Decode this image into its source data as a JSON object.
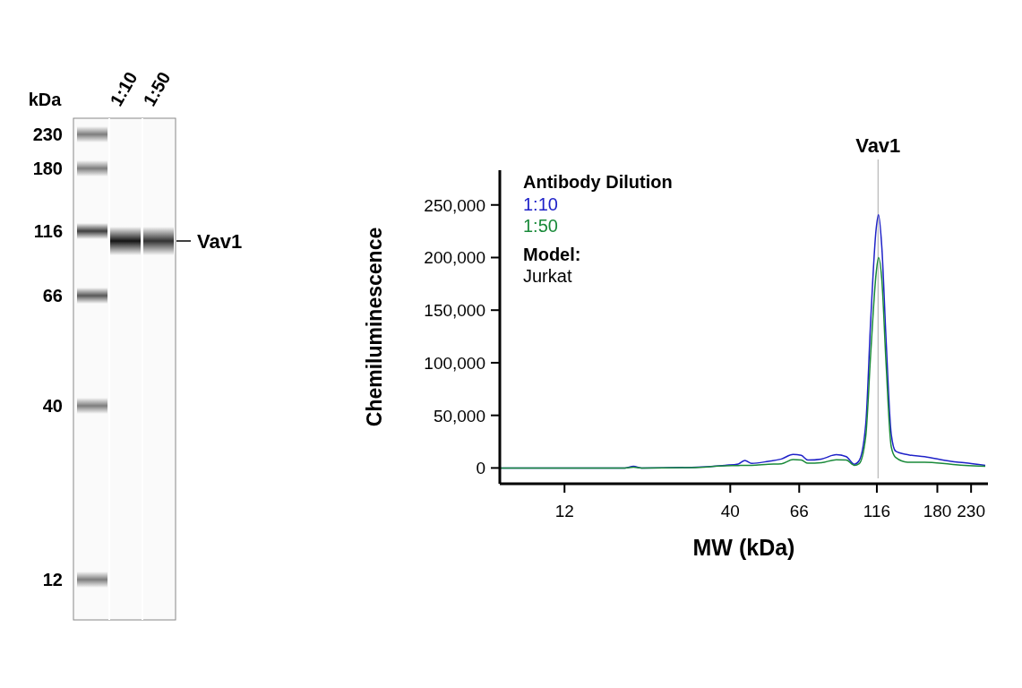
{
  "chart_data": [
    {
      "type": "other",
      "ylabel": "kDa",
      "categories": [
        "1:10",
        "1:50"
      ],
      "annotations": [
        "230",
        "180",
        "116",
        "66",
        "40",
        "12",
        "Vav1"
      ]
    },
    {
      "type": "line",
      "xlabel": "MW (kDa)",
      "ylabel": "Chemiluminescence",
      "legend_title": "Antibody Dilution",
      "legend": "top left",
      "log": "x",
      "xlim": [
        7.5,
        260
      ],
      "xticks": [
        12,
        40,
        66,
        116,
        180,
        230
      ],
      "ylim": [
        -15000,
        283000
      ],
      "yticks": [
        0,
        {
          "value": 50000,
          "label": "50,000"
        },
        {
          "value": 100000,
          "label": "100,000"
        },
        {
          "value": 150000,
          "label": "150,000"
        },
        {
          "value": 200000,
          "label": "200,000"
        },
        {
          "value": 250000,
          "label": "250,000"
        }
      ],
      "ref_lines": [
        {
          "axis": "x",
          "value": 117,
          "label": "Vav1",
          "color": "#aaaaaa"
        }
      ],
      "annotations": [
        "Model:",
        "Jurkat"
      ],
      "series": [
        {
          "name": "1:10",
          "color": "#1f22c8",
          "x": [
            7.5,
            18.6,
            19.8,
            21,
            30.2,
            38.5,
            42.4,
            44.5,
            46.7,
            52.7,
            58,
            63.1,
            67,
            70.3,
            77.5,
            86.4,
            92.9,
            98.6,
            102,
            107,
            111,
            115.4,
            117.4,
            120.2,
            124,
            128.8,
            133,
            145,
            164,
            199,
            219,
            255
          ],
          "values": [
            0,
            0,
            1600,
            0,
            600,
            2500,
            3800,
            7200,
            4400,
            6300,
            8500,
            12900,
            12000,
            7500,
            8500,
            12600,
            10700,
            3500,
            6900,
            41500,
            142000,
            227000,
            240600,
            211000,
            123000,
            32000,
            16000,
            12600,
            10700,
            6300,
            5000,
            2500
          ]
        },
        {
          "name": "1:50",
          "color": "#1a8a3a",
          "x": [
            7.5,
            18.6,
            19.8,
            21,
            30.2,
            38.5,
            42.4,
            44.5,
            46.7,
            52.7,
            58,
            63.1,
            67,
            70.3,
            77.5,
            86.4,
            92.9,
            98.6,
            102,
            107,
            111,
            115.4,
            117.4,
            120.2,
            124,
            128.8,
            133,
            145,
            164,
            199,
            219,
            255
          ],
          "values": [
            0,
            0,
            800,
            0,
            400,
            2000,
            2300,
            2500,
            2500,
            3500,
            4000,
            8000,
            7500,
            4500,
            5000,
            7800,
            7500,
            2500,
            4000,
            30000,
            110000,
            185000,
            200000,
            180000,
            100000,
            20000,
            10000,
            5500,
            5500,
            3500,
            2500,
            1500
          ]
        }
      ]
    }
  ]
}
